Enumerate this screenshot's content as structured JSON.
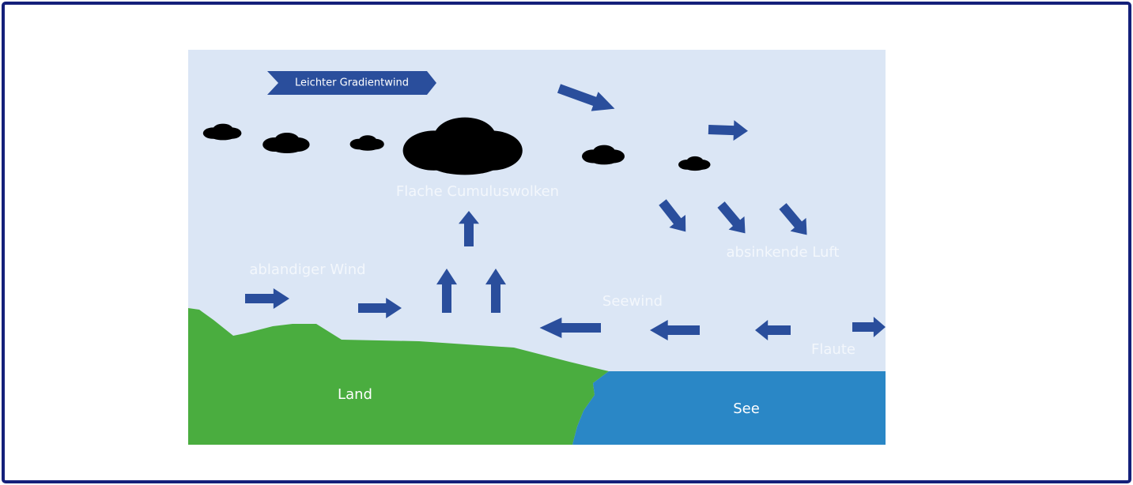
{
  "banner": "Leichter Gradientwind",
  "labels": {
    "clouds": "Flache Cumuluswolken",
    "sinking_air": "absinkende Luft",
    "offshore_wind": "ablandiger Wind",
    "sea_breeze": "Seewind",
    "calm": "Flaute"
  },
  "areas": {
    "land": "Land",
    "sea": "See"
  }
}
